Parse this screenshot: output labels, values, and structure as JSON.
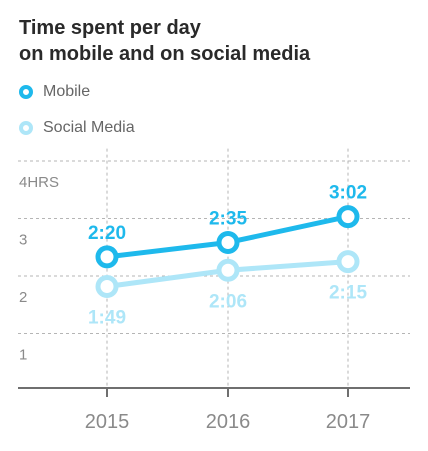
{
  "header": {
    "title_line1": "Time spent per day",
    "title_line2": "on mobile and on social media"
  },
  "colors": {
    "mobile": "#1eb9ec",
    "social": "#aee6f8",
    "grid": "#b5b5b5",
    "axis": "#6f6f6f",
    "tick_text": "#8a8a8a"
  },
  "chart_data": {
    "type": "line",
    "categories": [
      "2015",
      "2016",
      "2017"
    ],
    "ylim": [
      0.5,
      4.25
    ],
    "y_ticks": [
      {
        "value": 4,
        "label": "4HRS"
      },
      {
        "value": 3,
        "label": "3"
      },
      {
        "value": 2,
        "label": "2"
      },
      {
        "value": 1,
        "label": "1"
      }
    ],
    "grid": true,
    "legend_position": "top-left",
    "series": [
      {
        "name": "Mobile",
        "key": "mobile",
        "values": [
          2.333,
          2.583,
          3.033
        ],
        "labels": [
          "2:20",
          "2:35",
          "3:02"
        ],
        "label_position": "above"
      },
      {
        "name": "Social Media",
        "key": "social",
        "values": [
          1.817,
          2.1,
          2.25
        ],
        "labels": [
          "1:49",
          "2:06",
          "2:15"
        ],
        "label_position": "below"
      }
    ]
  }
}
